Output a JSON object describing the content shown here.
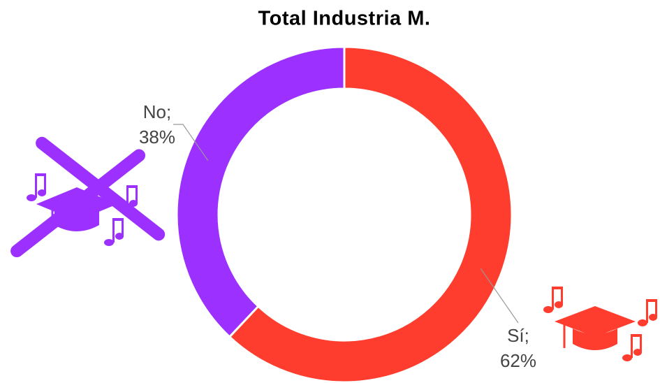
{
  "chart_data": {
    "type": "donut",
    "title": "Total Industria M.",
    "categories": [
      "Sí;",
      "No;"
    ],
    "values": [
      62,
      38
    ],
    "value_labels": [
      "62%",
      "38%"
    ],
    "colors": [
      "#ff3d2e",
      "#9b30ff"
    ]
  }
}
